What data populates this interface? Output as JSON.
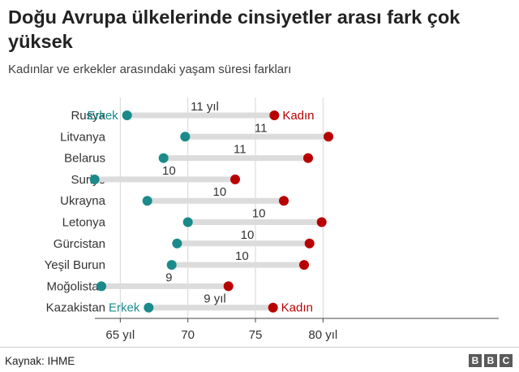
{
  "title": "Doğu Avrupa ülkelerinde cinsiyetler arası fark çok yüksek",
  "subtitle": "Kadınlar ve erkekler arasındaki yaşam süresi farkları",
  "source": "Kaynak: IHME",
  "logo": [
    "B",
    "B",
    "C"
  ],
  "colors": {
    "male": "#1b8a8a",
    "female": "#b80000",
    "bar": "#dcdcdc",
    "grid": "#d6d6d6"
  },
  "chart_data": {
    "type": "dumbbell",
    "xlim": [
      60,
      93
    ],
    "xticks": [
      {
        "value": 65,
        "label": "65 yıl"
      },
      {
        "value": 70,
        "label": "70"
      },
      {
        "value": 75,
        "label": "75"
      },
      {
        "value": 80,
        "label": "80 yıl"
      }
    ],
    "male_label": "Erkek",
    "female_label": "Kadın",
    "rows": [
      {
        "country": "Rusya",
        "male": 65.5,
        "female": 76.4,
        "gap": "11 yıl",
        "labels": true
      },
      {
        "country": "Litvanya",
        "male": 69.8,
        "female": 80.4,
        "gap": "11",
        "labels": false
      },
      {
        "country": "Belarus",
        "male": 68.2,
        "female": 78.9,
        "gap": "11",
        "labels": false
      },
      {
        "country": "Suriye",
        "male": 63.1,
        "female": 73.5,
        "gap": "10",
        "labels": false
      },
      {
        "country": "Ukrayna",
        "male": 67.0,
        "female": 77.1,
        "gap": "10",
        "labels": false
      },
      {
        "country": "Letonya",
        "male": 70.0,
        "female": 79.9,
        "gap": "10",
        "labels": false
      },
      {
        "country": "Gürcistan",
        "male": 69.2,
        "female": 79.0,
        "gap": "10",
        "labels": false
      },
      {
        "country": "Yeşil Burun",
        "male": 68.8,
        "female": 78.6,
        "gap": "10",
        "labels": false
      },
      {
        "country": "Moğolistan",
        "male": 63.6,
        "female": 73.0,
        "gap": "9",
        "labels": false
      },
      {
        "country": "Kazakistan",
        "male": 67.1,
        "female": 76.3,
        "gap": "9 yıl",
        "labels": true
      }
    ]
  }
}
